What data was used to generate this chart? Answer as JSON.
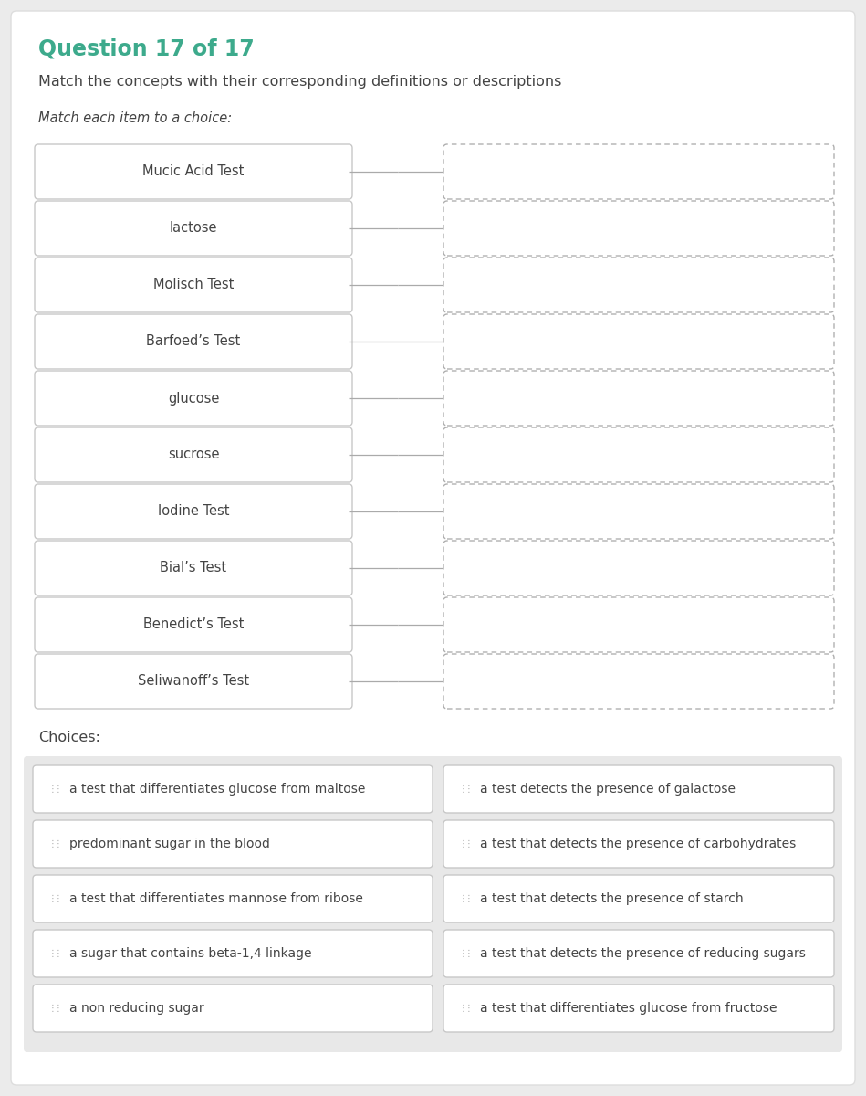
{
  "title": "Question 17 of 17",
  "subtitle": "Match the concepts with their corresponding definitions or descriptions",
  "instruction": "Match each item to a choice:",
  "title_color": "#3daa8c",
  "left_items": [
    "Mucic Acid Test",
    "lactose",
    "Molisch Test",
    "Barfoed’s Test",
    "glucose",
    "sucrose",
    "Iodine Test",
    "Bial’s Test",
    "Benedict’s Test",
    "Seliwanoff’s Test"
  ],
  "choices_label": "Choices:",
  "choices": [
    [
      "a test that differentiates glucose from maltose",
      "a test detects the presence of galactose"
    ],
    [
      "predominant sugar in the blood",
      "a test that detects the presence of carbohydrates"
    ],
    [
      "a test that differentiates mannose from ribose",
      "a test that detects the presence of starch"
    ],
    [
      "a sugar that contains beta-1,4 linkage",
      "a test that detects the presence of reducing sugars"
    ],
    [
      "a non reducing sugar",
      "a test that differentiates glucose from fructose"
    ]
  ],
  "background_color": "#ebebeb",
  "card_background": "#ffffff",
  "border_color": "#c8c8c8",
  "dashed_border_color": "#b0b0b0",
  "text_color": "#444444",
  "drag_icon_color": "#aaaaaa",
  "choices_bg": "#e8e8e8",
  "choice_border_color": "#c8c8c8",
  "fig_width": 9.49,
  "fig_height": 12.0
}
